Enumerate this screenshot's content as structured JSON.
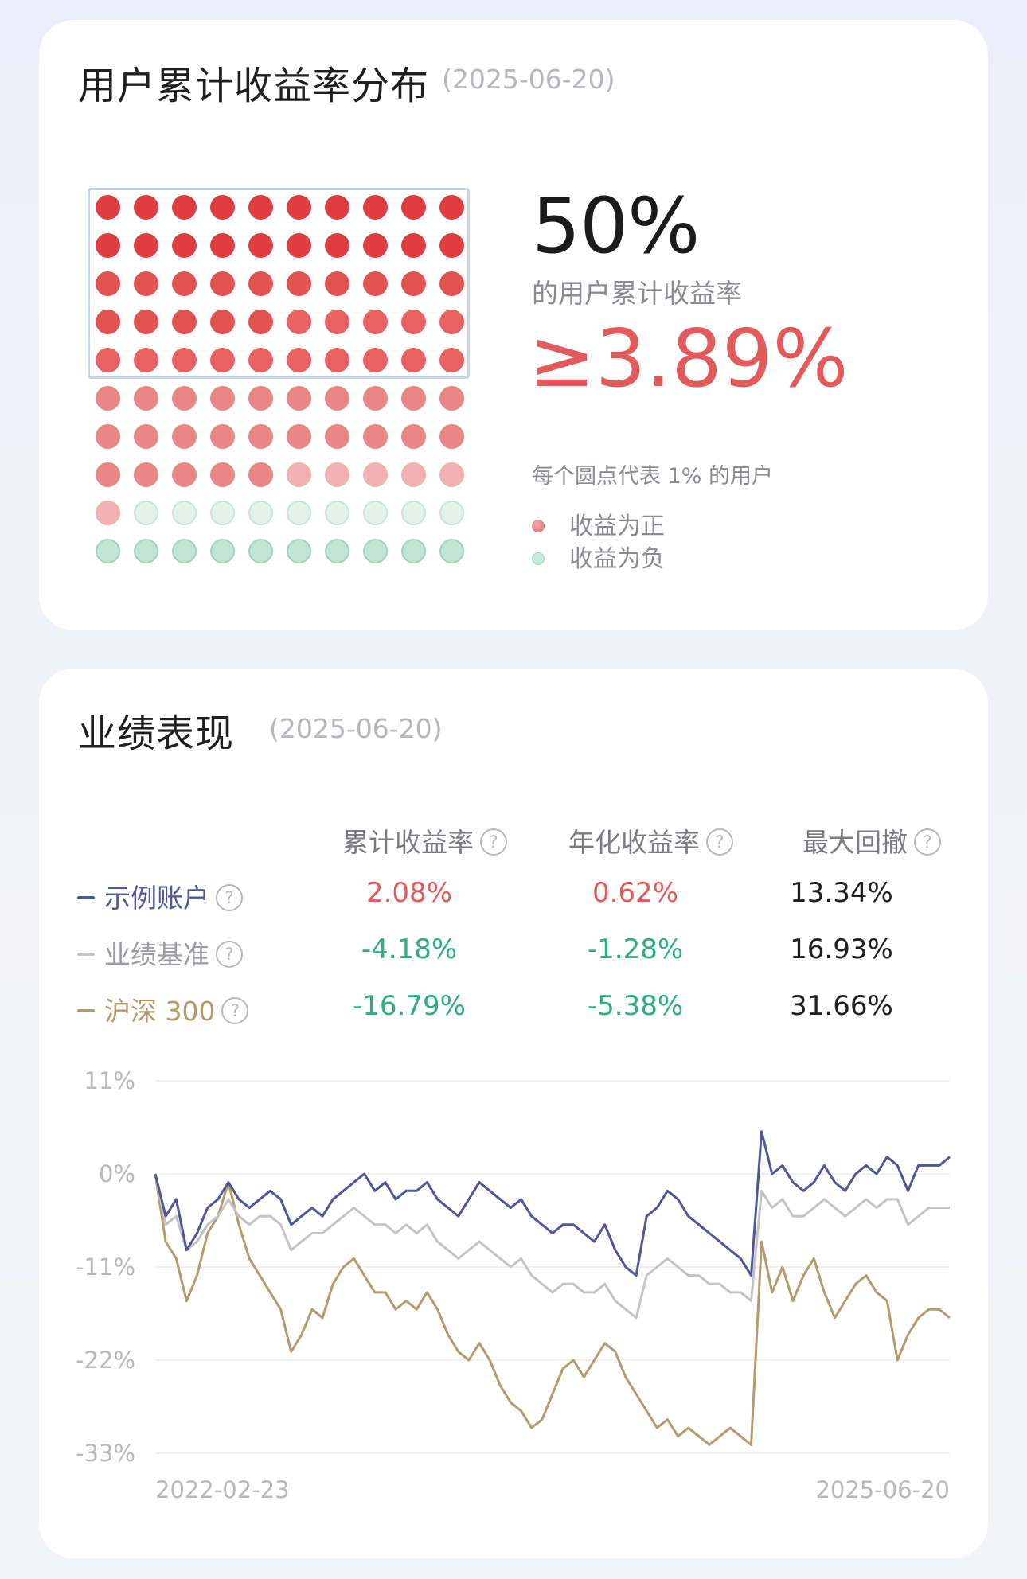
{
  "distribution_card": {
    "title": "用户累计收益率分布",
    "date": "(2025-06-20)",
    "big_percent": "50%",
    "caption": "的用户累计收益率",
    "threshold": "≥3.89%",
    "dot_note": "每个圆点代表 1% 的用户",
    "legend": [
      {
        "label": "收益为正",
        "color": "#e98b8b"
      },
      {
        "label": "收益为负",
        "color": "#b7e2cf"
      }
    ],
    "dots": {
      "count": 100,
      "positive_count": 81,
      "negative_count": 19,
      "highlighted_count": 50
    }
  },
  "performance_card": {
    "title": "业绩表现",
    "date": "(2025-06-20)",
    "headers": [
      "累计收益率",
      "年化收益率",
      "最大回撤"
    ],
    "help_icon": "?",
    "rows": [
      {
        "name": "示例账户",
        "color": "#4f5699",
        "cumulative": "2.08%",
        "annualized": "0.62%",
        "max_drawdown": "13.34%"
      },
      {
        "name": "业绩基准",
        "color": "#c4c4c4",
        "cumulative": "-4.18%",
        "annualized": "-1.28%",
        "max_drawdown": "16.93%"
      },
      {
        "name": "沪深 300",
        "color": "#b59a6e",
        "cumulative": "-16.79%",
        "annualized": "-5.38%",
        "max_drawdown": "31.66%"
      }
    ]
  },
  "chart_data": {
    "type": "line",
    "x_start": "2022-02-23",
    "x_end": "2025-06-20",
    "y_ticks": [
      "11%",
      "0%",
      "-11%",
      "-22%",
      "-33%"
    ],
    "ylim": [
      -33,
      11
    ],
    "grid": true,
    "series": [
      {
        "name": "示例账户",
        "color": "#4f5699",
        "values": [
          0,
          -5,
          -3,
          -9,
          -7,
          -4,
          -3,
          -1,
          -3,
          -4,
          -3,
          -2,
          -3,
          -6,
          -5,
          -4,
          -5,
          -3,
          -2,
          -1,
          0,
          -2,
          -1,
          -3,
          -2,
          -2,
          -1,
          -3,
          -4,
          -5,
          -3,
          -1,
          -2,
          -3,
          -4,
          -3,
          -5,
          -6,
          -7,
          -6,
          -6,
          -7,
          -8,
          -6,
          -9,
          -11,
          -12,
          -5,
          -4,
          -2,
          -3,
          -5,
          -6,
          -7,
          -8,
          -9,
          -10,
          -12,
          5,
          0,
          1,
          -1,
          -2,
          -1,
          1,
          -1,
          -2,
          0,
          1,
          0,
          2,
          1,
          -2,
          1,
          1,
          1,
          2
        ]
      },
      {
        "name": "业绩基准",
        "color": "#c4c4c4",
        "values": [
          0,
          -6,
          -5,
          -9,
          -8,
          -6,
          -5,
          -3,
          -5,
          -6,
          -5,
          -5,
          -6,
          -9,
          -8,
          -7,
          -7,
          -6,
          -5,
          -4,
          -5,
          -6,
          -6,
          -7,
          -6,
          -7,
          -6,
          -8,
          -9,
          -10,
          -9,
          -8,
          -9,
          -10,
          -11,
          -10,
          -12,
          -13,
          -14,
          -13,
          -13,
          -14,
          -14,
          -13,
          -15,
          -16,
          -17,
          -12,
          -11,
          -10,
          -11,
          -12,
          -12,
          -13,
          -13,
          -14,
          -14,
          -15,
          -2,
          -4,
          -3,
          -5,
          -5,
          -4,
          -3,
          -4,
          -5,
          -4,
          -3,
          -4,
          -3,
          -3,
          -6,
          -5,
          -4,
          -4,
          -4
        ]
      },
      {
        "name": "沪深 300",
        "color": "#b59a6e",
        "values": [
          0,
          -8,
          -10,
          -15,
          -12,
          -7,
          -5,
          -1,
          -6,
          -10,
          -12,
          -14,
          -16,
          -21,
          -19,
          -16,
          -17,
          -13,
          -11,
          -10,
          -12,
          -14,
          -14,
          -16,
          -15,
          -16,
          -14,
          -16,
          -19,
          -21,
          -22,
          -20,
          -22,
          -25,
          -27,
          -28,
          -30,
          -29,
          -26,
          -23,
          -22,
          -24,
          -22,
          -20,
          -21,
          -24,
          -26,
          -28,
          -30,
          -29,
          -31,
          -30,
          -31,
          -32,
          -31,
          -30,
          -31,
          -32,
          -8,
          -14,
          -11,
          -15,
          -12,
          -10,
          -14,
          -17,
          -15,
          -13,
          -12,
          -14,
          -15,
          -22,
          -19,
          -17,
          -16,
          -16,
          -17
        ]
      }
    ]
  }
}
